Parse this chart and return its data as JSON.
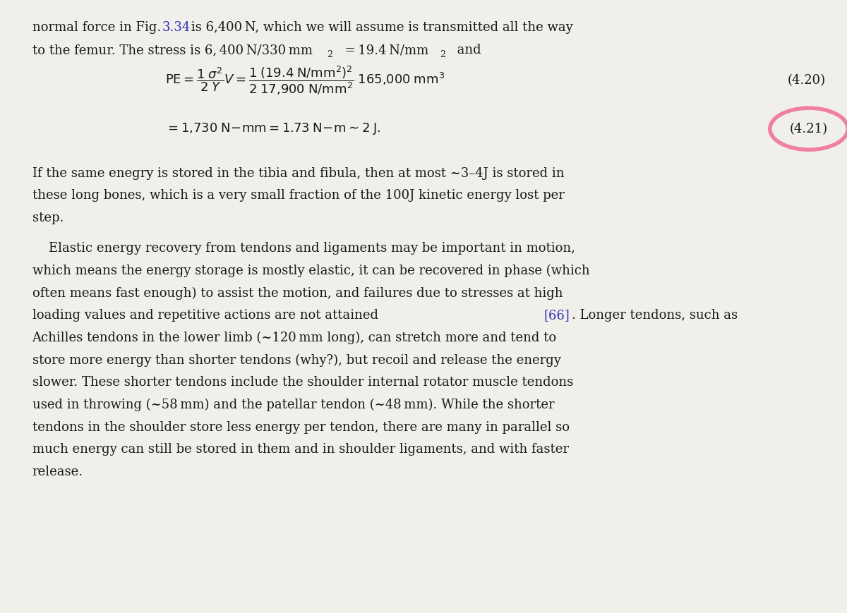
{
  "bg_color": "#f0efea",
  "text_color": "#1a1a1a",
  "link_color": "#3333bb",
  "circle_color": "#f080a0",
  "font_size_body": 13.0,
  "figsize": [
    12.0,
    8.69
  ],
  "dpi": 100,
  "eq_label1": "(4.20)",
  "eq_label2": "(4.21)",
  "para1_line1": "If the same enegry is stored in the tibia and fibula, then at most ~3–4J is stored in",
  "para1_line2": "these long bones, which is a very small fraction of the 100J kinetic energy lost per",
  "para1_line3": "step.",
  "para2_line1": "    Elastic energy recovery from tendons and ligaments may be important in motion,",
  "para2_line2": "which means the energy storage is mostly elastic, it can be recovered in phase (which",
  "para2_line3": "often means fast enough) to assist the motion, and failures due to stresses at high",
  "para2_line4_a": "loading values and repetitive actions are not attained ",
  "para2_line4_link": "[66]",
  "para2_line4_b": ". Longer tendons, such as",
  "para2_line5": "Achilles tendons in the lower limb (~120 mm long), can stretch more and tend to",
  "para2_line6": "store more energy than shorter tendons (why?), but recoil and release the energy",
  "para2_line7": "slower. These shorter tendons include the shoulder internal rotator muscle tendons",
  "para2_line8": "used in throwing (~58 mm) and the patellar tendon (~48 mm). While the shorter",
  "para2_line9": "tendons in the shoulder store less energy per tendon, there are many in parallel so",
  "para2_line10": "much energy can still be stored in them and in shoulder ligaments, and with faster",
  "para2_line11": "release."
}
